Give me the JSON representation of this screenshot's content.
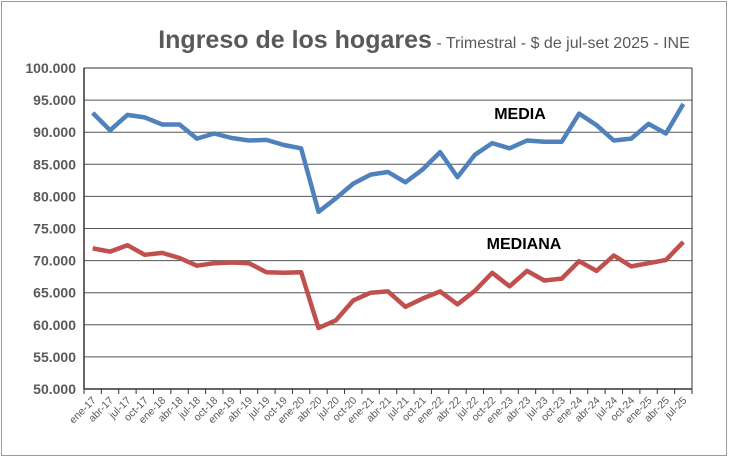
{
  "chart_data": {
    "type": "line",
    "title": "Ingreso de los hogares",
    "subtitle": "- Trimestral - $ de jul-set 2025 - INE",
    "xlabel": "",
    "ylabel": "",
    "ylim": [
      50000,
      100000
    ],
    "yticks": [
      "50.000",
      "55.000",
      "60.000",
      "65.000",
      "70.000",
      "75.000",
      "80.000",
      "85.000",
      "90.000",
      "95.000",
      "100.000"
    ],
    "grid": true,
    "categories": [
      "ene-17",
      "abr-17",
      "jul-17",
      "oct-17",
      "ene-18",
      "abr-18",
      "jul-18",
      "oct-18",
      "ene-19",
      "abr-19",
      "jul-19",
      "oct-19",
      "ene-20",
      "abr-20",
      "jul-20",
      "oct-20",
      "ene-21",
      "abr-21",
      "jul-21",
      "oct-21",
      "ene-22",
      "abr-22",
      "jul-22",
      "oct-22",
      "ene-23",
      "abr-23",
      "jul-23",
      "oct-23",
      "ene-24",
      "abr-24",
      "jul-24",
      "oct-24",
      "ene-25",
      "abr-25",
      "jul-25"
    ],
    "series": [
      {
        "name": "MEDIA",
        "color": "#4f81bd",
        "values": [
          93000,
          90300,
          92700,
          92300,
          91200,
          91200,
          89000,
          89800,
          89100,
          88700,
          88800,
          88000,
          87500,
          77600,
          79700,
          82000,
          83400,
          83800,
          82200,
          84200,
          86900,
          83000,
          86500,
          88300,
          87500,
          88700,
          88500,
          88500,
          92900,
          91100,
          88700,
          89000,
          91300,
          89800,
          94400
        ]
      },
      {
        "name": "MEDIANA",
        "color": "#c0504d",
        "values": [
          71900,
          71400,
          72400,
          70900,
          71200,
          70400,
          69200,
          69600,
          69700,
          69600,
          68200,
          68100,
          68200,
          59500,
          60700,
          63800,
          65000,
          65200,
          62800,
          64100,
          65200,
          63200,
          65300,
          68100,
          66000,
          68400,
          66900,
          67200,
          69900,
          68400,
          70800,
          69100,
          69600,
          70100,
          72900
        ]
      }
    ]
  }
}
